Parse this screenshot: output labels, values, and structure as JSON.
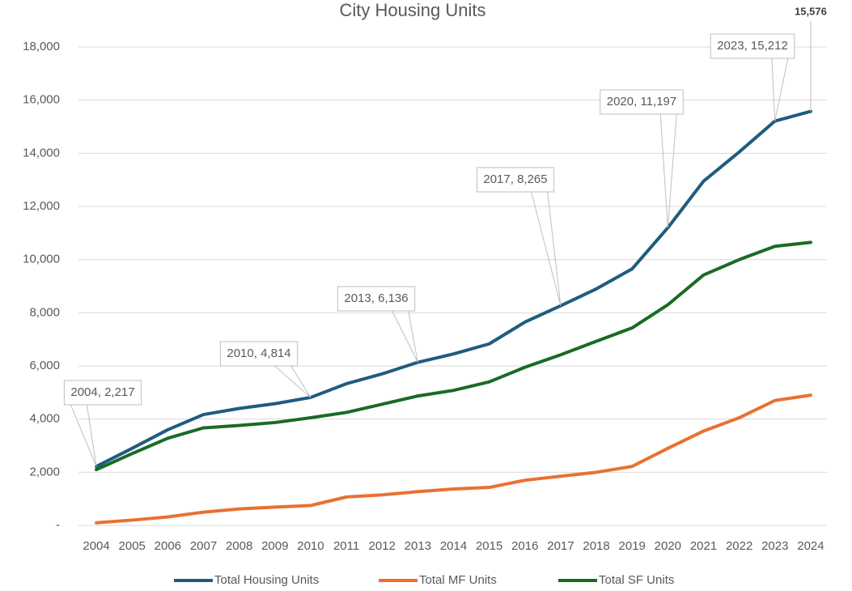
{
  "chart_data": {
    "type": "line",
    "title": "City Housing Units",
    "categories": [
      "2004",
      "2005",
      "2006",
      "2007",
      "2008",
      "2009",
      "2010",
      "2011",
      "2012",
      "2013",
      "2014",
      "2015",
      "2016",
      "2017",
      "2018",
      "2019",
      "2020",
      "2021",
      "2022",
      "2023",
      "2024"
    ],
    "series": [
      {
        "name": "Total Housing Units",
        "color": "#1f5c7f",
        "values": [
          2217,
          2900,
          3600,
          4170,
          4400,
          4580,
          4814,
          5330,
          5700,
          6136,
          6450,
          6830,
          7650,
          8265,
          8900,
          9650,
          11197,
          12950,
          14050,
          15212,
          15576
        ],
        "value_labels": [
          "2004, 2,217",
          null,
          null,
          null,
          null,
          null,
          "2010, 4,814",
          null,
          null,
          "2013, 6,136",
          null,
          null,
          null,
          "2017, 8,265",
          null,
          null,
          "2020, 11,197",
          null,
          null,
          "2023, 15,212",
          "15,576"
        ]
      },
      {
        "name": "Total MF Units",
        "color": "#e97132",
        "values": [
          100,
          200,
          320,
          500,
          620,
          690,
          750,
          1070,
          1150,
          1270,
          1370,
          1430,
          1700,
          1850,
          2000,
          2220,
          2900,
          3550,
          4050,
          4700,
          4900
        ]
      },
      {
        "name": "Total SF Units",
        "color": "#196b24",
        "values": [
          2100,
          2700,
          3280,
          3670,
          3760,
          3870,
          4050,
          4250,
          4560,
          4870,
          5080,
          5400,
          5950,
          6420,
          6930,
          7430,
          8300,
          9420,
          10000,
          10500,
          10650
        ]
      }
    ],
    "ylim": [
      0,
      18000
    ],
    "yticks": [
      {
        "value": 0,
        "label": "-"
      },
      {
        "value": 2000,
        "label": "2,000"
      },
      {
        "value": 4000,
        "label": "4,000"
      },
      {
        "value": 6000,
        "label": "6,000"
      },
      {
        "value": 8000,
        "label": "8,000"
      },
      {
        "value": 10000,
        "label": "10,000"
      },
      {
        "value": 12000,
        "label": "12,000"
      },
      {
        "value": 14000,
        "label": "14,000"
      },
      {
        "value": 16000,
        "label": "16,000"
      },
      {
        "value": 18000,
        "label": "18,000"
      }
    ],
    "grid": true,
    "legend": "bottom"
  }
}
